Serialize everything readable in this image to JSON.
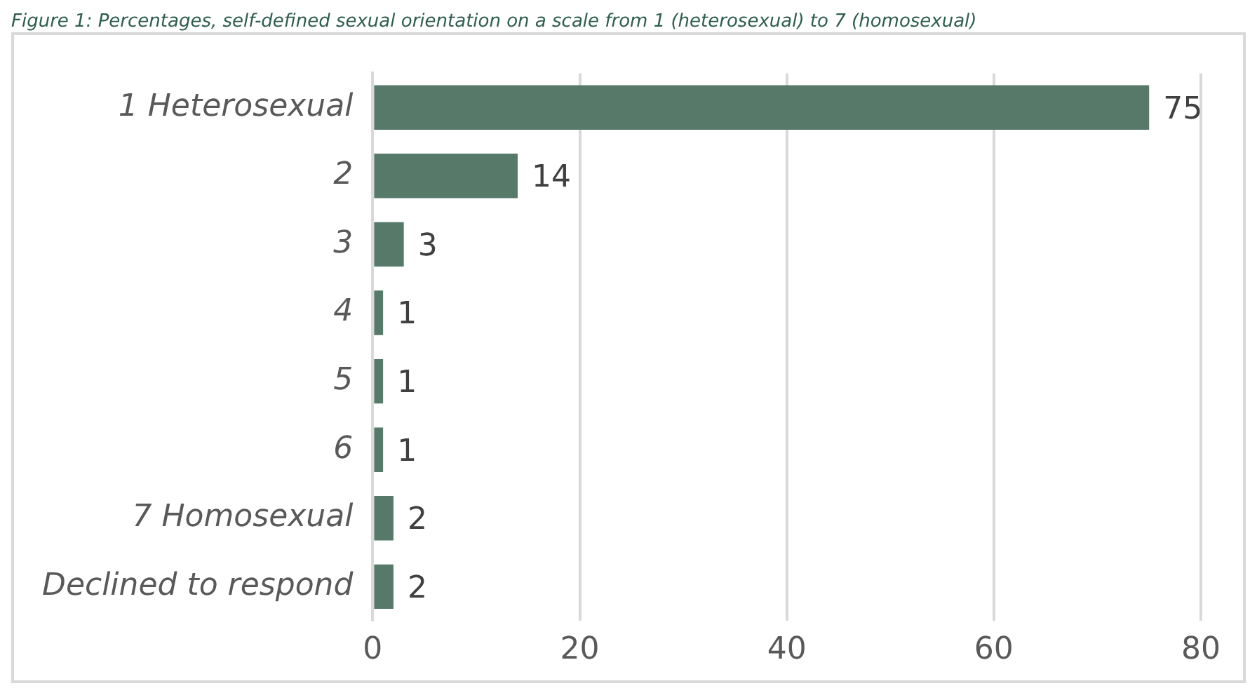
{
  "chart_data": {
    "type": "bar",
    "orientation": "horizontal",
    "title": "Figure 1: Percentages, self-defined sexual orientation on a scale from 1 (heterosexual) to 7 (homosexual)",
    "categories": [
      "1 Heterosexual",
      "2",
      "3",
      "4",
      "5",
      "6",
      "7 Homosexual",
      "Declined to respond"
    ],
    "values": [
      75,
      14,
      3,
      1,
      1,
      1,
      2,
      2
    ],
    "color": "#56796a",
    "xlim": [
      0,
      80
    ],
    "xticks": [
      0,
      20,
      40,
      60,
      80
    ],
    "grid": "x",
    "data_labels": true,
    "legend": false
  }
}
